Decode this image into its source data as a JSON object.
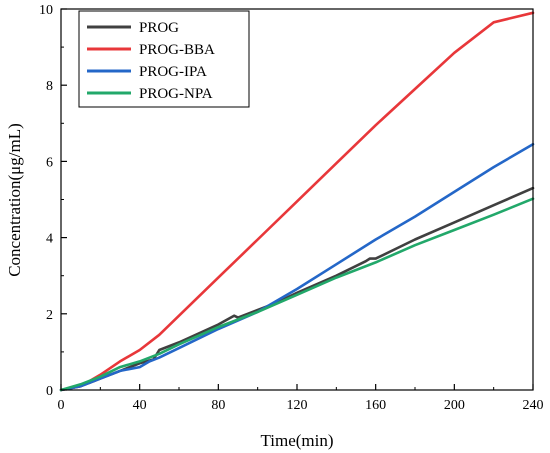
{
  "chart_data": {
    "type": "line",
    "xlabel": "Time(min)",
    "ylabel": "Concentration(μg/mL)",
    "xlim": [
      0,
      240
    ],
    "ylim": [
      0,
      10
    ],
    "xticks": [
      0,
      40,
      80,
      120,
      160,
      200,
      240
    ],
    "yticks": [
      0,
      2,
      4,
      6,
      8,
      10
    ],
    "grid": false,
    "legend_position": "top-left",
    "series": [
      {
        "name": "PROG",
        "color": "#404040",
        "x": [
          0,
          5,
          10,
          15,
          20,
          30,
          40,
          47,
          50,
          60,
          80,
          88,
          90,
          100,
          110,
          120,
          140,
          155,
          157,
          160,
          180,
          200,
          220,
          240
        ],
        "y": [
          0,
          0.05,
          0.1,
          0.2,
          0.3,
          0.5,
          0.7,
          0.8,
          1.05,
          1.25,
          1.72,
          1.95,
          1.9,
          2.1,
          2.3,
          2.55,
          3.0,
          3.38,
          3.45,
          3.45,
          3.95,
          4.4,
          4.85,
          5.3
        ]
      },
      {
        "name": "PROG-BBA",
        "color": "#e8373a",
        "x": [
          0,
          10,
          20,
          30,
          40,
          50,
          60,
          80,
          100,
          120,
          140,
          160,
          180,
          200,
          220,
          240
        ],
        "y": [
          0,
          0.1,
          0.4,
          0.75,
          1.05,
          1.45,
          1.95,
          2.95,
          3.95,
          4.95,
          5.95,
          6.95,
          7.9,
          8.85,
          9.65,
          9.9
        ]
      },
      {
        "name": "PROG-IPA",
        "color": "#2467c8",
        "x": [
          0,
          10,
          20,
          30,
          40,
          45,
          50,
          60,
          80,
          100,
          120,
          140,
          160,
          180,
          200,
          220,
          240
        ],
        "y": [
          0,
          0.1,
          0.3,
          0.5,
          0.6,
          0.75,
          0.85,
          1.1,
          1.6,
          2.05,
          2.65,
          3.3,
          3.95,
          4.55,
          5.2,
          5.85,
          6.45
        ]
      },
      {
        "name": "PROG-NPA",
        "color": "#22a86a",
        "x": [
          0,
          10,
          20,
          30,
          40,
          50,
          60,
          80,
          100,
          120,
          140,
          160,
          180,
          200,
          220,
          240
        ],
        "y": [
          0,
          0.15,
          0.35,
          0.6,
          0.75,
          0.95,
          1.2,
          1.65,
          2.05,
          2.5,
          2.95,
          3.35,
          3.8,
          4.2,
          4.6,
          5.02
        ]
      }
    ]
  }
}
